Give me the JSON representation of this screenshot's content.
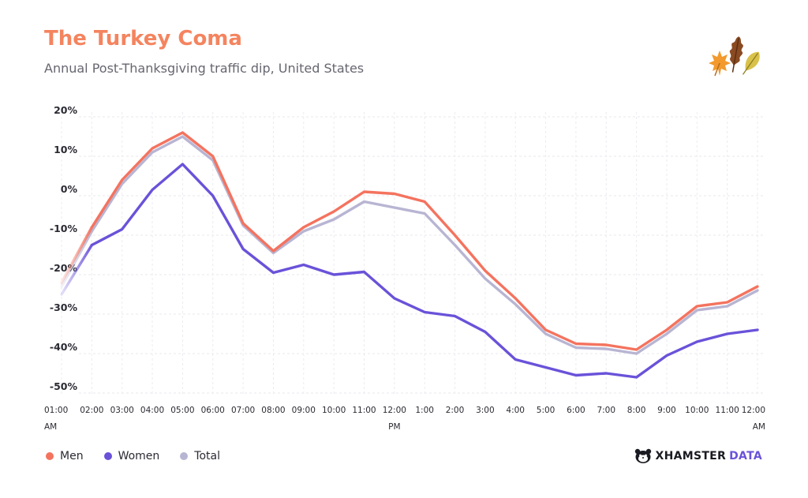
{
  "header": {
    "title": "The Turkey Coma",
    "subtitle": "Annual Post-Thanksgiving traffic dip, United States"
  },
  "legend": [
    {
      "label": "Men",
      "color": "#f4735f"
    },
    {
      "label": "Women",
      "color": "#6a52d9"
    },
    {
      "label": "Total",
      "color": "#b8b5d3"
    }
  ],
  "brand": {
    "main": "XHAMSTER",
    "accent": "DATA"
  },
  "colors": {
    "accent": "#f4845f",
    "men": "#f4735f",
    "women": "#6a52d9",
    "total": "#b8b5d3",
    "grid": "#e6e6ec"
  },
  "chart_data": {
    "type": "line",
    "title": "The Turkey Coma",
    "subtitle": "Annual Post-Thanksgiving traffic dip, United States",
    "xlabel": "",
    "ylabel": "",
    "ylim": [
      -50,
      20
    ],
    "yticks": [
      20,
      10,
      0,
      -10,
      -20,
      -30,
      -40,
      -50
    ],
    "ytick_labels": [
      "20%",
      "10%",
      "0%",
      "-10%",
      "-20%",
      "-30%",
      "-40%",
      "-50%"
    ],
    "categories": [
      "01:00",
      "02:00",
      "03:00",
      "04:00",
      "05:00",
      "06:00",
      "07:00",
      "08:00",
      "09:00",
      "10:00",
      "11:00",
      "12:00",
      "1:00",
      "2:00",
      "3:00",
      "4:00",
      "5:00",
      "6:00",
      "7:00",
      "8:00",
      "9:00",
      "10:00",
      "11:00",
      "12:00"
    ],
    "sublabels": {
      "0": "AM",
      "11": "PM",
      "23": "AM"
    },
    "legend_position": "bottom-left",
    "grid": true,
    "series": [
      {
        "name": "Men",
        "color": "#f4735f",
        "values": [
          -22,
          -8,
          4,
          12,
          16,
          10,
          -7,
          -14,
          -8,
          -4,
          1,
          0.5,
          -1.5,
          -10,
          -19,
          -26,
          -34,
          -37.5,
          -37.8,
          -39,
          -34,
          -28,
          -27,
          -23
        ]
      },
      {
        "name": "Women",
        "color": "#6a52d9",
        "values": [
          -25,
          -12.5,
          -8.5,
          1.5,
          8,
          0,
          -13.5,
          -19.5,
          -17.5,
          -20,
          -19.3,
          -26,
          -29.5,
          -30.5,
          -34.5,
          -41.5,
          -43.5,
          -45.5,
          -45,
          -46,
          -40.5,
          -37,
          -35,
          -34
        ]
      },
      {
        "name": "Total",
        "color": "#b8b5d3",
        "values": [
          -23,
          -9,
          3,
          11,
          15,
          9,
          -7.5,
          -14.5,
          -9,
          -6,
          -1.5,
          -3,
          -4.5,
          -12.5,
          -21,
          -27.5,
          -35,
          -38.5,
          -38.8,
          -40,
          -35,
          -29,
          -28,
          -24
        ]
      }
    ]
  }
}
